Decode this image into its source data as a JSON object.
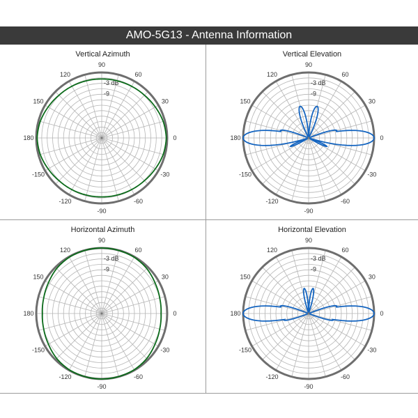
{
  "header": {
    "title": "AMO-5G13 - Antenna Information"
  },
  "colors": {
    "header_bg": "#3a3a3a",
    "azimuth_trace": "#0b6b1a",
    "elevation_trace": "#1565c0",
    "grid": "#b5b5b5",
    "outer_ring": "#6e6e6e"
  },
  "chart_data": [
    {
      "type": "polar",
      "title": "Vertical Azimuth",
      "radial_unit": "dB",
      "radial_labels": [
        "-3 dB",
        "-9"
      ],
      "angle_labels": [
        "0",
        "30",
        "60",
        "90",
        "120",
        "150",
        "180",
        "-150",
        "-120",
        "-90",
        "-60",
        "-30"
      ],
      "series": [
        {
          "angles_deg": [
            0,
            15,
            30,
            45,
            60,
            75,
            90,
            105,
            120,
            135,
            150,
            165,
            180,
            195,
            210,
            225,
            240,
            255,
            270,
            285,
            300,
            315,
            330,
            345
          ],
          "gain_db": [
            -0.5,
            -1,
            -2,
            -2.8,
            -3.2,
            -3.5,
            -3.6,
            -3.5,
            -3.2,
            -2.8,
            -2,
            -1,
            -0.5,
            -1,
            -2,
            -2.8,
            -3.2,
            -3.5,
            -3.6,
            -3.5,
            -3.2,
            -2.8,
            -2,
            -1
          ]
        }
      ]
    },
    {
      "type": "polar",
      "title": "Vertical Elevation",
      "radial_unit": "dB",
      "radial_labels": [
        "-3 dB",
        "-9"
      ],
      "angle_labels": [
        "0",
        "30",
        "60",
        "90",
        "120",
        "150",
        "180",
        "-150",
        "-120",
        "-90",
        "-60",
        "-30"
      ],
      "series": [
        {
          "lobes": [
            {
              "center_deg": 0,
              "peak_db": 0,
              "beamwidth_deg": 10
            },
            {
              "center_deg": 180,
              "peak_db": 0,
              "beamwidth_deg": 10
            },
            {
              "center_deg": 15,
              "peak_db": -20,
              "beamwidth_deg": 6
            },
            {
              "center_deg": 165,
              "peak_db": -20,
              "beamwidth_deg": 6
            },
            {
              "center_deg": 75,
              "peak_db": -18,
              "beamwidth_deg": 10
            },
            {
              "center_deg": 105,
              "peak_db": -18,
              "beamwidth_deg": 10
            },
            {
              "center_deg": -25,
              "peak_db": -25,
              "beamwidth_deg": 6
            },
            {
              "center_deg": -155,
              "peak_db": -25,
              "beamwidth_deg": 6
            }
          ]
        }
      ]
    },
    {
      "type": "polar",
      "title": "Horizontal Azimuth",
      "radial_unit": "dB",
      "radial_labels": [
        "-3 dB",
        "-9"
      ],
      "angle_labels": [
        "0",
        "30",
        "60",
        "90",
        "120",
        "150",
        "180",
        "-150",
        "-120",
        "-90",
        "-60",
        "-30"
      ],
      "series": [
        {
          "angles_deg": [
            0,
            15,
            30,
            45,
            60,
            75,
            90,
            105,
            120,
            135,
            150,
            165,
            180,
            195,
            210,
            225,
            240,
            255,
            270,
            285,
            300,
            315,
            330,
            345
          ],
          "gain_db": [
            -3.4,
            -3,
            -2.2,
            -1,
            -0.3,
            -0.1,
            0,
            -0.1,
            -0.3,
            -1,
            -2.2,
            -3,
            -3.4,
            -3,
            -2.2,
            -1,
            -0.3,
            -0.1,
            0,
            -0.1,
            -0.3,
            -1,
            -2.2,
            -3
          ]
        }
      ]
    },
    {
      "type": "polar",
      "title": "Horizontal Elevation",
      "radial_unit": "dB",
      "radial_labels": [
        "-3 dB",
        "-9"
      ],
      "angle_labels": [
        "0",
        "30",
        "60",
        "90",
        "120",
        "150",
        "180",
        "-150",
        "-120",
        "-90",
        "-60",
        "-30"
      ],
      "series": [
        {
          "lobes": [
            {
              "center_deg": 0,
              "peak_db": 0,
              "beamwidth_deg": 10
            },
            {
              "center_deg": 180,
              "peak_db": 0,
              "beamwidth_deg": 10
            },
            {
              "center_deg": 15,
              "peak_db": -20,
              "beamwidth_deg": 6
            },
            {
              "center_deg": 165,
              "peak_db": -20,
              "beamwidth_deg": 6
            },
            {
              "center_deg": 80,
              "peak_db": -22,
              "beamwidth_deg": 8
            },
            {
              "center_deg": 100,
              "peak_db": -22,
              "beamwidth_deg": 8
            },
            {
              "center_deg": -15,
              "peak_db": -22,
              "beamwidth_deg": 6
            },
            {
              "center_deg": -165,
              "peak_db": -22,
              "beamwidth_deg": 6
            }
          ]
        }
      ]
    }
  ]
}
